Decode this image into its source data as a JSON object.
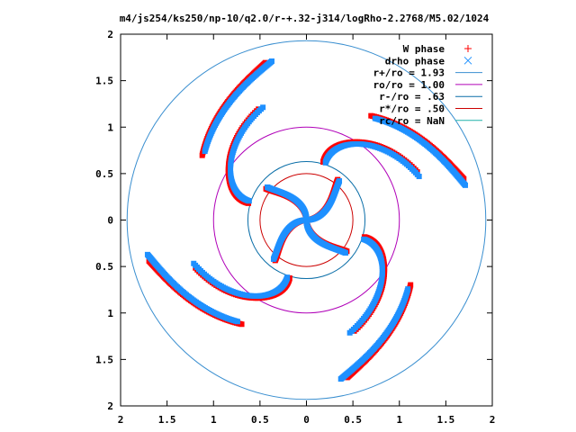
{
  "chart_data": {
    "type": "scatter",
    "title": "m4/js254/ks250/np-10/q2.0/r-+.32-j314/logRho-2.2768/M5.02/1024",
    "xlabel": "",
    "ylabel": "",
    "xlim": [
      -2,
      2
    ],
    "ylim": [
      -2,
      2
    ],
    "x_ticks": [
      -2,
      -1.5,
      -1,
      -0.5,
      0,
      0.5,
      1,
      1.5,
      2
    ],
    "x_tick_labels": [
      "2",
      "1.5",
      "1",
      "0.5",
      "0",
      "0.5",
      "1",
      "1.5",
      "2"
    ],
    "y_ticks": [
      2,
      1.5,
      1,
      0.5,
      0,
      -0.5,
      -1,
      -1.5,
      -2
    ],
    "y_tick_labels": [
      "2",
      "1.5",
      "1",
      "0.5",
      "0",
      "0.5",
      "1",
      "1.5",
      "2"
    ],
    "grid": false,
    "legend_position": "top-right",
    "series": [
      {
        "name": "W phase",
        "kind": "points",
        "marker": "plus",
        "color": "#ff0000"
      },
      {
        "name": "drho phase",
        "kind": "points",
        "marker": "cross",
        "color": "#1e90ff"
      }
    ],
    "circles": [
      {
        "name": "r+/ro = 1.93",
        "radius": 1.93,
        "color": "#3a8fd0"
      },
      {
        "name": "ro/ro = 1.00",
        "radius": 1.0,
        "color": "#b000b8"
      },
      {
        "name": "r-/ro = .63",
        "radius": 0.63,
        "color": "#0a6ea8"
      },
      {
        "name": "r*/ro = .50",
        "radius": 0.5,
        "color": "#cc0000"
      },
      {
        "name": "rc/ro = NaN",
        "radius": null,
        "color": "#20b2aa"
      }
    ],
    "arms": [
      {
        "phi0": 0.0,
        "r_start": 0.02,
        "r_end": 0.55
      },
      {
        "phi0": 1.5708,
        "r_start": 0.02,
        "r_end": 0.55
      },
      {
        "phi0": 3.1416,
        "r_start": 0.02,
        "r_end": 0.55
      },
      {
        "phi0": 4.7124,
        "r_start": 0.02,
        "r_end": 0.55
      },
      {
        "phi0": 0.35,
        "r_start": 0.65,
        "r_end": 1.3
      },
      {
        "phi0": 1.92,
        "r_start": 0.65,
        "r_end": 1.3
      },
      {
        "phi0": 3.49,
        "r_start": 0.65,
        "r_end": 1.3
      },
      {
        "phi0": 5.06,
        "r_start": 0.65,
        "r_end": 1.3
      },
      {
        "phi0": 1.0,
        "r_start": 1.32,
        "r_end": 1.75
      },
      {
        "phi0": 2.57,
        "r_start": 1.32,
        "r_end": 1.75
      },
      {
        "phi0": 4.14,
        "r_start": 1.32,
        "r_end": 1.75
      },
      {
        "phi0": 5.71,
        "r_start": 1.32,
        "r_end": 1.75
      }
    ]
  }
}
